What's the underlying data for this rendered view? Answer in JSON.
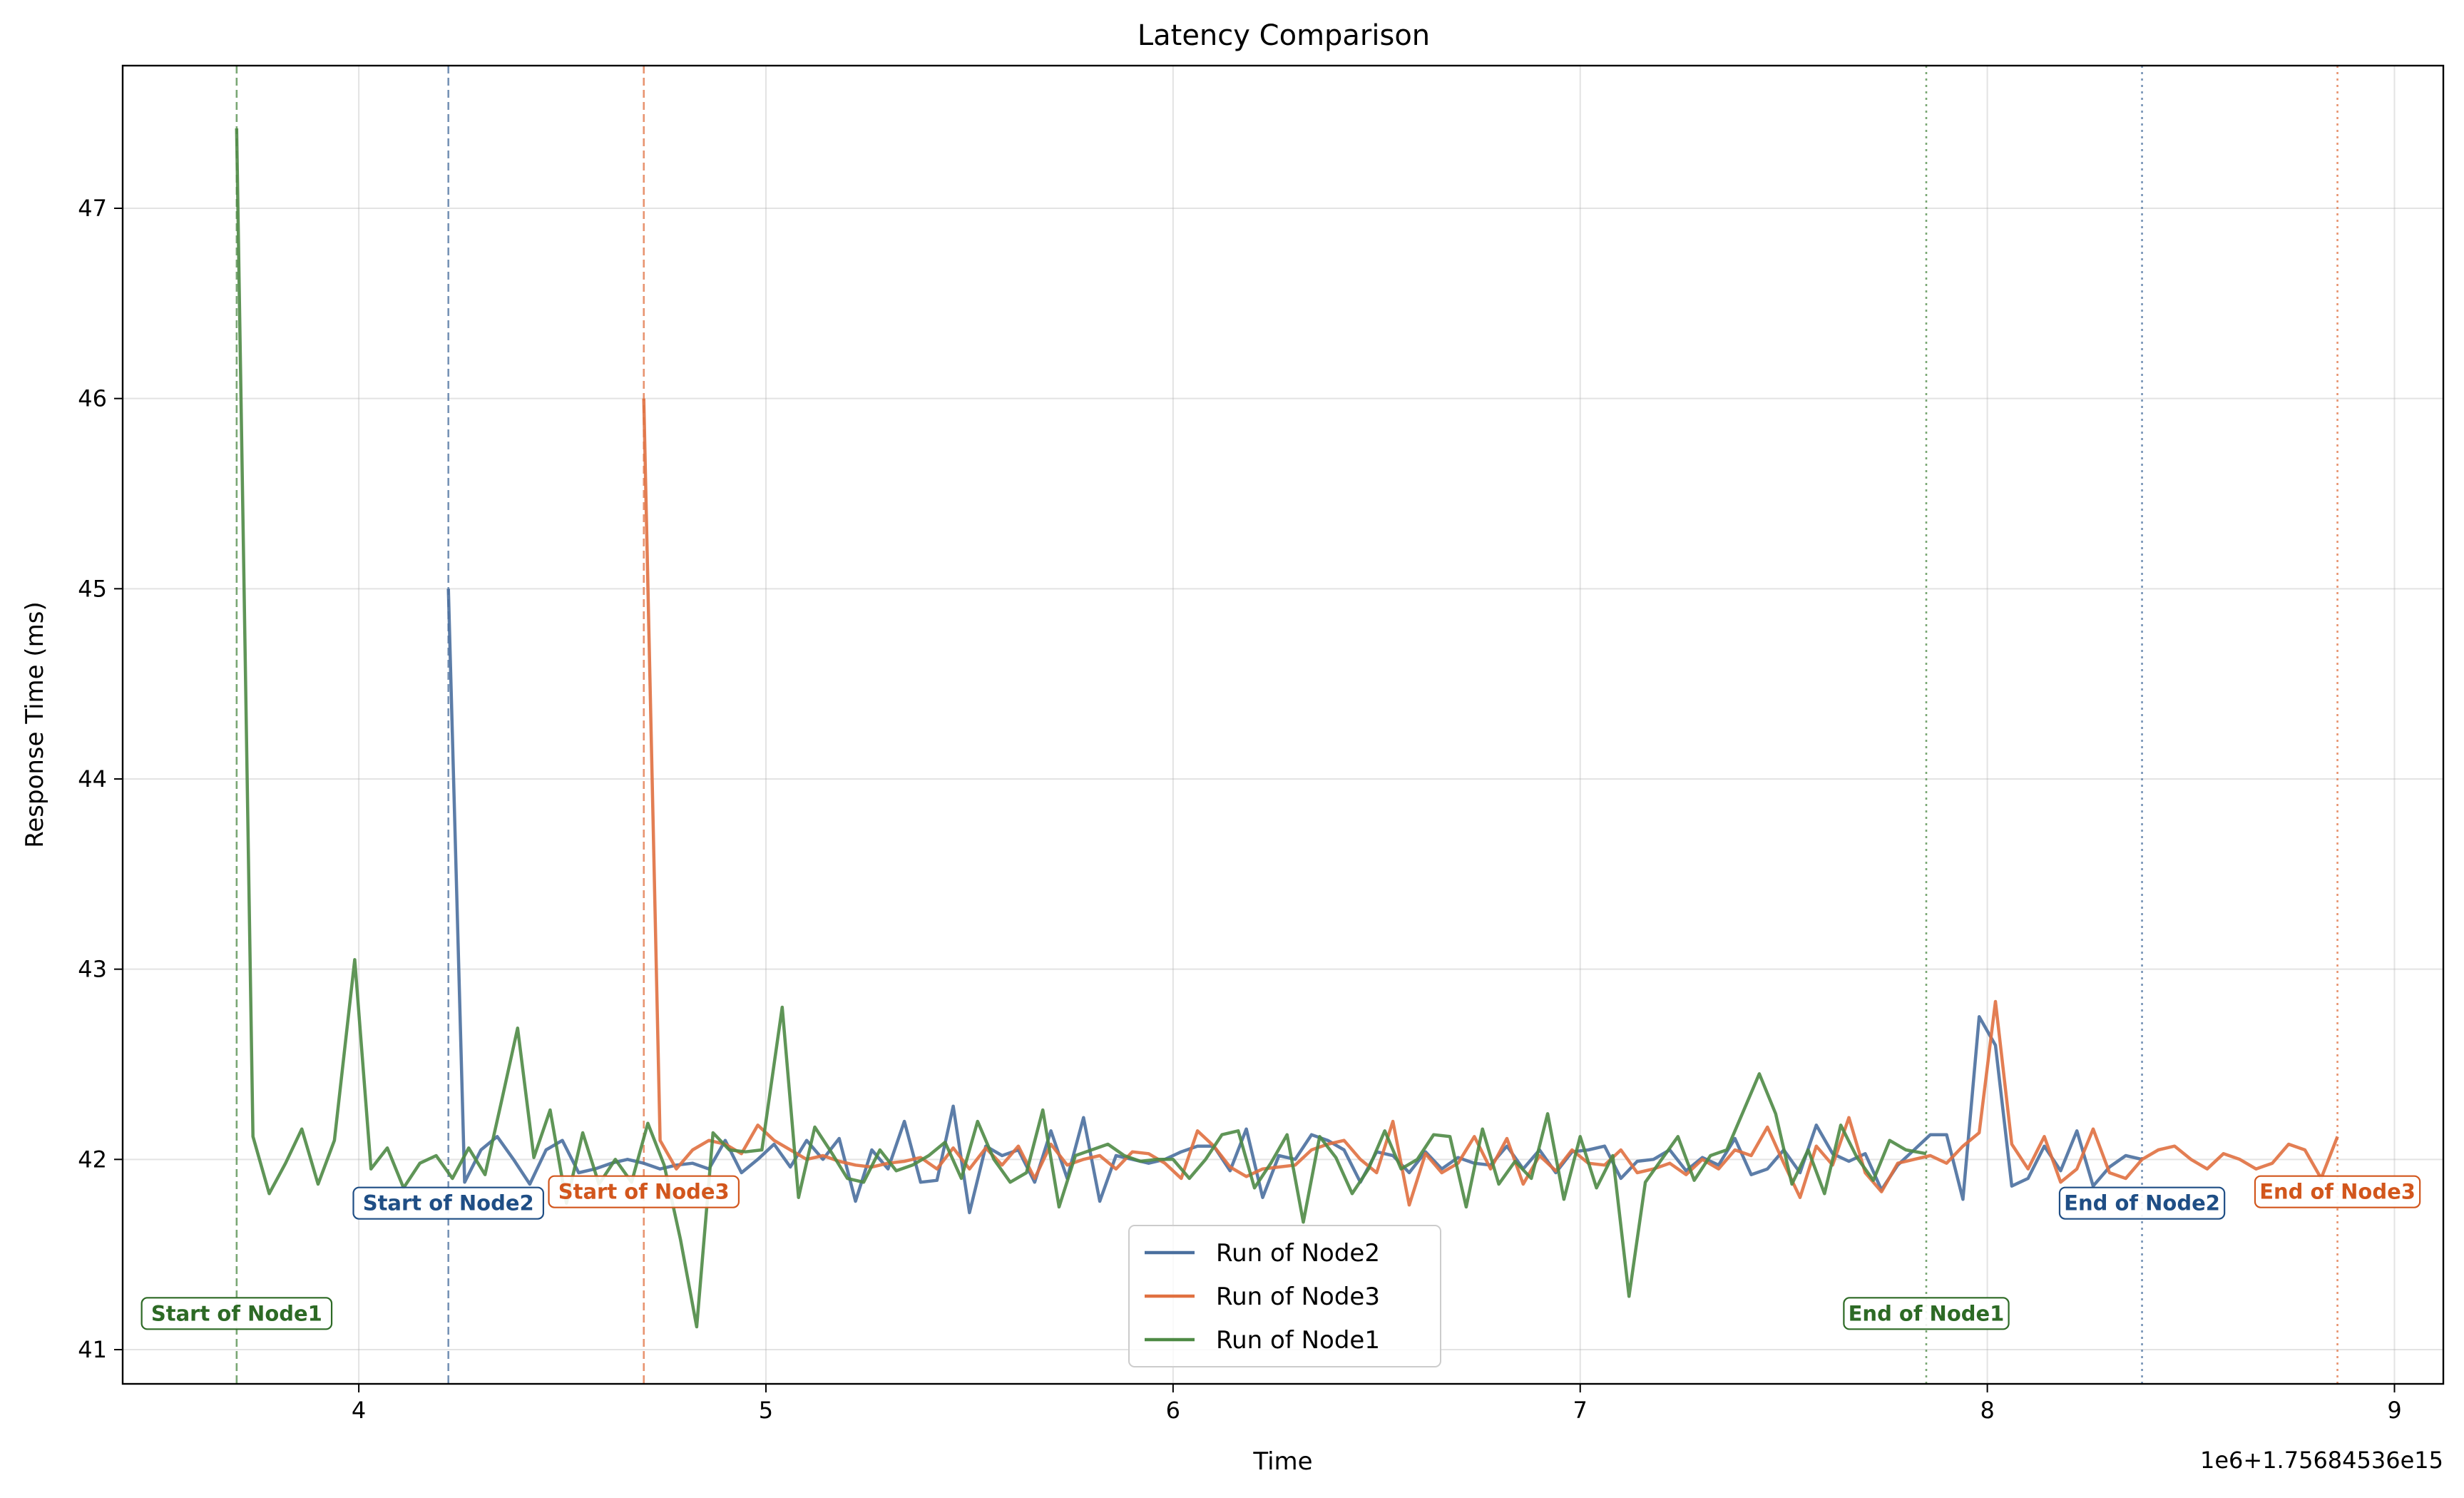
{
  "chart_data": {
    "type": "line",
    "title": "Latency Comparison",
    "xlabel": "Time",
    "ylabel": "Response Time (ms)",
    "x_offset_label": "1e6+1.75684536e15",
    "xlim": [
      3.42,
      9.12
    ],
    "ylim": [
      40.82,
      47.75
    ],
    "xticks": [
      4,
      5,
      6,
      7,
      8,
      9
    ],
    "yticks": [
      41,
      42,
      43,
      44,
      45,
      46,
      47
    ],
    "grid": true,
    "legend_position": "bottom-center",
    "colors": {
      "node2": "#4a6f9e",
      "node3": "#e07040",
      "node1": "#4e8a45",
      "node2_text": "#1f4e85",
      "node3_text": "#d2561c",
      "node1_text": "#2d6a25"
    },
    "series": [
      {
        "name": "Run of Node2",
        "color": "#4a6f9e",
        "x": [
          4.22,
          4.26,
          4.3,
          4.34,
          4.38,
          4.42,
          4.46,
          4.5,
          4.54,
          4.58,
          4.62,
          4.66,
          4.7,
          4.74,
          4.78,
          4.82,
          4.86,
          4.9,
          4.94,
          4.98,
          5.02,
          5.06,
          5.1,
          5.14,
          5.18,
          5.22,
          5.26,
          5.3,
          5.34,
          5.38,
          5.42,
          5.46,
          5.5,
          5.54,
          5.58,
          5.62,
          5.66,
          5.7,
          5.74,
          5.78,
          5.82,
          5.86,
          5.9,
          5.94,
          5.98,
          6.02,
          6.06,
          6.1,
          6.14,
          6.18,
          6.22,
          6.26,
          6.3,
          6.34,
          6.38,
          6.42,
          6.46,
          6.5,
          6.54,
          6.58,
          6.62,
          6.66,
          6.7,
          6.74,
          6.78,
          6.82,
          6.86,
          6.9,
          6.94,
          6.98,
          7.02,
          7.06,
          7.1,
          7.14,
          7.18,
          7.22,
          7.26,
          7.3,
          7.34,
          7.38,
          7.42,
          7.46,
          7.5,
          7.54,
          7.58,
          7.62,
          7.66,
          7.7,
          7.74,
          7.78,
          7.82,
          7.86,
          7.9,
          7.94,
          7.98,
          8.02,
          8.06,
          8.1,
          8.14,
          8.18,
          8.22,
          8.26,
          8.3,
          8.34,
          8.38
        ],
        "y": [
          45.0,
          41.88,
          42.05,
          42.12,
          42.0,
          41.87,
          42.05,
          42.1,
          41.93,
          41.95,
          41.98,
          42.0,
          41.98,
          41.95,
          41.97,
          41.98,
          41.95,
          42.1,
          41.93,
          42.0,
          42.08,
          41.96,
          42.1,
          42.0,
          42.11,
          41.78,
          42.05,
          41.95,
          42.2,
          41.88,
          41.89,
          42.28,
          41.72,
          42.07,
          42.02,
          42.05,
          41.88,
          42.15,
          41.9,
          42.22,
          41.78,
          42.02,
          42.0,
          41.98,
          42.0,
          42.04,
          42.07,
          42.07,
          41.94,
          42.16,
          41.8,
          42.02,
          42.0,
          42.13,
          42.1,
          42.05,
          41.88,
          42.04,
          42.02,
          41.93,
          42.04,
          41.95,
          42.01,
          41.98,
          41.97,
          42.07,
          41.95,
          42.05,
          41.93,
          42.04,
          42.05,
          42.07,
          41.9,
          41.99,
          42.0,
          42.05,
          41.94,
          42.01,
          41.97,
          42.11,
          41.92,
          41.95,
          42.05,
          41.93,
          42.18,
          42.03,
          41.99,
          42.03,
          41.84,
          41.97,
          42.05,
          42.13,
          42.13,
          41.79,
          42.75,
          42.6,
          41.86,
          41.9,
          42.07,
          41.94,
          42.15,
          41.86,
          41.96,
          42.02,
          42.0
        ]
      },
      {
        "name": "Run of Node3",
        "color": "#e07040",
        "x": [
          4.7,
          4.74,
          4.78,
          4.82,
          4.86,
          4.9,
          4.94,
          4.98,
          5.02,
          5.06,
          5.1,
          5.14,
          5.18,
          5.22,
          5.26,
          5.3,
          5.34,
          5.38,
          5.42,
          5.46,
          5.5,
          5.54,
          5.58,
          5.62,
          5.66,
          5.7,
          5.74,
          5.78,
          5.82,
          5.86,
          5.9,
          5.94,
          5.98,
          6.02,
          6.06,
          6.1,
          6.14,
          6.18,
          6.22,
          6.26,
          6.3,
          6.34,
          6.38,
          6.42,
          6.46,
          6.5,
          6.54,
          6.58,
          6.62,
          6.66,
          6.7,
          6.74,
          6.78,
          6.82,
          6.86,
          6.9,
          6.94,
          6.98,
          7.02,
          7.06,
          7.1,
          7.14,
          7.18,
          7.22,
          7.26,
          7.3,
          7.34,
          7.38,
          7.42,
          7.46,
          7.5,
          7.54,
          7.58,
          7.62,
          7.66,
          7.7,
          7.74,
          7.78,
          7.82,
          7.86,
          7.9,
          7.94,
          7.98,
          8.02,
          8.06,
          8.1,
          8.14,
          8.18,
          8.22,
          8.26,
          8.3,
          8.34,
          8.38,
          8.42,
          8.46,
          8.5,
          8.54,
          8.58,
          8.62,
          8.66,
          8.7,
          8.74,
          8.78,
          8.82,
          8.86
        ],
        "y": [
          46.0,
          42.1,
          41.95,
          42.05,
          42.1,
          42.08,
          42.03,
          42.18,
          42.1,
          42.05,
          42.0,
          42.02,
          41.99,
          41.97,
          41.96,
          41.98,
          41.99,
          42.01,
          41.95,
          42.06,
          41.95,
          42.06,
          41.97,
          42.07,
          41.9,
          42.08,
          41.97,
          42.0,
          42.02,
          41.95,
          42.04,
          42.03,
          41.98,
          41.9,
          42.15,
          42.07,
          41.96,
          41.91,
          41.95,
          41.96,
          41.97,
          42.05,
          42.08,
          42.1,
          42.0,
          41.93,
          42.2,
          41.76,
          42.03,
          41.93,
          41.98,
          42.12,
          41.95,
          42.11,
          41.87,
          42.02,
          41.94,
          42.05,
          41.98,
          41.97,
          42.05,
          41.93,
          41.95,
          41.98,
          41.92,
          42.0,
          41.95,
          42.05,
          42.02,
          42.17,
          41.98,
          41.8,
          42.07,
          41.97,
          42.22,
          41.93,
          41.83,
          41.98,
          42.0,
          42.02,
          41.98,
          42.07,
          42.14,
          42.83,
          42.08,
          41.95,
          42.12,
          41.88,
          41.95,
          42.16,
          41.93,
          41.9,
          42.0,
          42.05,
          42.07,
          42.0,
          41.95,
          42.03,
          42.0,
          41.95,
          41.98,
          42.08,
          42.05,
          41.9,
          42.12
        ]
      },
      {
        "name": "Run of Node1",
        "color": "#4e8a45",
        "x": [
          3.7,
          3.74,
          3.78,
          3.82,
          3.86,
          3.9,
          3.94,
          3.99,
          4.03,
          4.07,
          4.11,
          4.15,
          4.19,
          4.23,
          4.27,
          4.31,
          4.35,
          4.39,
          4.43,
          4.47,
          4.51,
          4.55,
          4.59,
          4.63,
          4.67,
          4.71,
          4.75,
          4.79,
          4.83,
          4.87,
          4.91,
          4.95,
          4.99,
          5.04,
          5.08,
          5.12,
          5.16,
          5.2,
          5.24,
          5.28,
          5.32,
          5.36,
          5.4,
          5.44,
          5.48,
          5.52,
          5.56,
          5.6,
          5.64,
          5.68,
          5.72,
          5.76,
          5.8,
          5.84,
          5.88,
          5.92,
          5.96,
          6.0,
          6.04,
          6.08,
          6.12,
          6.16,
          6.2,
          6.24,
          6.28,
          6.32,
          6.36,
          6.4,
          6.44,
          6.48,
          6.52,
          6.56,
          6.6,
          6.64,
          6.68,
          6.72,
          6.76,
          6.8,
          6.84,
          6.88,
          6.92,
          6.96,
          7.0,
          7.04,
          7.08,
          7.12,
          7.16,
          7.2,
          7.24,
          7.28,
          7.32,
          7.36,
          7.4,
          7.44,
          7.48,
          7.52,
          7.56,
          7.6,
          7.64,
          7.68,
          7.72,
          7.76,
          7.8,
          7.85
        ],
        "y": [
          47.42,
          42.12,
          41.82,
          41.98,
          42.16,
          41.87,
          42.1,
          43.05,
          41.95,
          42.06,
          41.85,
          41.98,
          42.02,
          41.9,
          42.06,
          41.92,
          42.3,
          42.69,
          42.01,
          42.26,
          41.77,
          42.14,
          41.87,
          42.0,
          41.88,
          42.19,
          41.97,
          41.58,
          41.12,
          42.14,
          42.05,
          42.04,
          42.05,
          42.8,
          41.8,
          42.17,
          42.04,
          41.9,
          41.88,
          42.05,
          41.94,
          41.97,
          42.02,
          42.09,
          41.9,
          42.2,
          42.0,
          41.88,
          41.93,
          42.26,
          41.75,
          42.02,
          42.05,
          42.08,
          42.02,
          41.99,
          42.0,
          42.0,
          41.9,
          42.0,
          42.13,
          42.15,
          41.85,
          41.98,
          42.13,
          41.67,
          42.12,
          42.01,
          41.82,
          41.95,
          42.15,
          41.95,
          42.0,
          42.13,
          42.12,
          41.75,
          42.16,
          41.87,
          41.99,
          41.9,
          42.24,
          41.79,
          42.12,
          41.85,
          42.02,
          41.28,
          41.88,
          42.0,
          42.12,
          41.89,
          42.02,
          42.05,
          42.25,
          42.45,
          42.24,
          41.87,
          42.05,
          41.82,
          42.18,
          42.01,
          41.89,
          42.1,
          42.05,
          42.03
        ]
      }
    ],
    "vlines": [
      {
        "x": 3.7,
        "color": "#4e8a45",
        "style": "dashed"
      },
      {
        "x": 4.22,
        "color": "#4a6f9e",
        "style": "dashed"
      },
      {
        "x": 4.7,
        "color": "#e07040",
        "style": "dashed"
      },
      {
        "x": 7.85,
        "color": "#4e8a45",
        "style": "dotted"
      },
      {
        "x": 8.38,
        "color": "#4a6f9e",
        "style": "dotted"
      },
      {
        "x": 8.86,
        "color": "#e07040",
        "style": "dotted"
      }
    ],
    "annotations": [
      {
        "text": "Start of Node1",
        "x": 3.7,
        "y": 41.19,
        "color": "#2d6a25"
      },
      {
        "text": "Start of Node2",
        "x": 4.22,
        "y": 41.77,
        "color": "#1f4e85"
      },
      {
        "text": "Start of Node3",
        "x": 4.7,
        "y": 41.83,
        "color": "#d2561c"
      },
      {
        "text": "End of Node1",
        "x": 7.85,
        "y": 41.19,
        "color": "#2d6a25"
      },
      {
        "text": "End of Node2",
        "x": 8.38,
        "y": 41.77,
        "color": "#1f4e85"
      },
      {
        "text": "End of Node3",
        "x": 8.86,
        "y": 41.83,
        "color": "#d2561c"
      }
    ]
  }
}
